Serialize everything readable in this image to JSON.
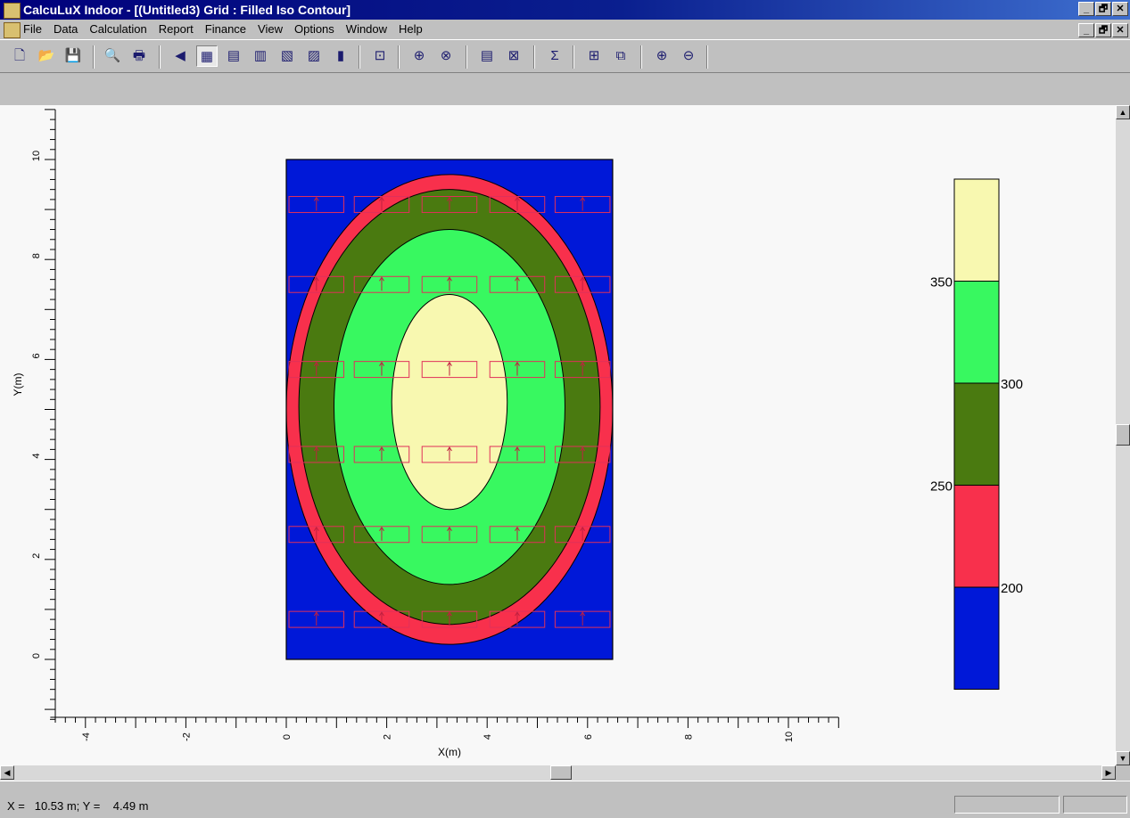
{
  "window": {
    "title": "CalcuLuX Indoor - [(Untitled3) Grid : Filled Iso Contour]",
    "buttons": [
      "_",
      "🗗",
      "✕"
    ]
  },
  "menu": {
    "items": [
      "File",
      "Data",
      "Calculation",
      "Report",
      "Finance",
      "View",
      "Options",
      "Window",
      "Help"
    ]
  },
  "toolbar": {
    "icons": [
      "new-icon",
      "open-icon",
      "save-icon",
      "print-preview-icon",
      "print-icon",
      "back-icon",
      "view-grid-icon",
      "view-room-icon",
      "view-3d-icon",
      "view-side-icon",
      "view-front-icon",
      "view-luminaire-icon",
      "calc-icon",
      "zoom-object-icon",
      "zoom-area-icon",
      "report-icon",
      "table-icon",
      "sum-icon",
      "tile-icon",
      "cascade-icon",
      "zoom-in-icon",
      "zoom-out-icon"
    ],
    "glyphs": [
      "🗋",
      "📂",
      "💾",
      "🔍",
      "🖶",
      "◀",
      "▦",
      "▤",
      "▥",
      "▧",
      "▨",
      "▮",
      "⊡",
      "⊕",
      "⊗",
      "▤",
      "⊠",
      "Σ",
      "⊞",
      "⧉",
      "⊕",
      "⊖"
    ]
  },
  "chart_data": {
    "type": "contour",
    "xlabel": "X(m)",
    "ylabel": "Y(m)",
    "xlim": [
      -4.7,
      11
    ],
    "ylim": [
      -1.2,
      11
    ],
    "xticks": [
      -4,
      -2,
      0,
      2,
      4,
      6,
      8,
      10
    ],
    "yticks": [
      0,
      2,
      4,
      6,
      8,
      10
    ],
    "xtick_labels": [
      "-4",
      "-2",
      "0",
      "2",
      "4",
      "6",
      "8",
      "10"
    ],
    "ytick_labels": [
      "0",
      "2",
      "4",
      "6",
      "8",
      "10"
    ],
    "room": {
      "x": [
        0,
        6.5
      ],
      "y": [
        0,
        10
      ]
    },
    "levels": [
      {
        "range": "<200",
        "color": "#0018d8"
      },
      {
        "range": "200-250",
        "color": "#f8304c"
      },
      {
        "range": "250-300",
        "color": "#4a7a10"
      },
      {
        "range": "300-350",
        "color": "#38f860"
      },
      {
        "range": ">350",
        "color": "#f8f8b0"
      }
    ],
    "legend_labels": [
      "350",
      "300",
      "250",
      "200"
    ],
    "luminaire_rows_y": [
      9.1,
      7.5,
      5.8,
      4.1,
      2.5,
      0.8
    ],
    "luminaire_cols_x": [
      0.6,
      1.9,
      3.25,
      4.6,
      5.9
    ],
    "contours": [
      {
        "level": 200,
        "center": [
          3.25,
          5.0
        ],
        "rx": 3.25,
        "ry": 4.7,
        "color": "#f8304c"
      },
      {
        "level": 250,
        "center": [
          3.25,
          5.05
        ],
        "rx": 3.0,
        "ry": 4.35,
        "color": "#4a7a10"
      },
      {
        "level": 300,
        "center": [
          3.25,
          5.05
        ],
        "rx": 2.3,
        "ry": 3.55,
        "color": "#38f860"
      },
      {
        "level": 350,
        "center": [
          3.25,
          5.15
        ],
        "rx": 1.15,
        "ry": 2.15,
        "color": "#f8f8b0"
      }
    ]
  },
  "status": {
    "coords": "X =   10.53 m; Y =    4.49 m"
  }
}
